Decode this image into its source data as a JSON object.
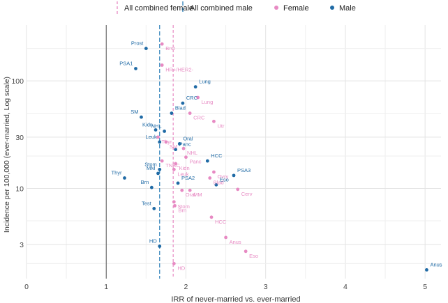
{
  "chart_data": {
    "type": "scatter",
    "xlabel": "IRR of never-married vs. ever-married",
    "ylabel": "Incidence per 100,000 (ever-married, Log scale)",
    "x_range": [
      0,
      5.2
    ],
    "y_range": [
      1.45,
      330
    ],
    "y_scale": "log",
    "x_ticks": [
      0,
      1,
      2,
      3,
      4,
      5
    ],
    "y_ticks": [
      3,
      10,
      30,
      100
    ],
    "grid": true,
    "legend_position": "top",
    "reference_lines": [
      {
        "name": "All combined female",
        "x": 1.84,
        "color": "#e78ac3",
        "dash": "4,3"
      },
      {
        "name": "All combined male",
        "x": 1.67,
        "color": "#2c7fb8",
        "dash": "6,3"
      }
    ],
    "legend": [
      {
        "label": "All combined female",
        "kind": "line",
        "color": "#e78ac3",
        "dash": "4,3"
      },
      {
        "label": "All combined male",
        "kind": "line",
        "color": "#2c7fb8",
        "dash": "6,3"
      },
      {
        "label": "Female",
        "kind": "point",
        "color": "#e78ac3"
      },
      {
        "label": "Male",
        "kind": "point",
        "color": "#1f6aa5"
      }
    ],
    "series": [
      {
        "name": "Female",
        "color": "#e78ac3",
        "points": [
          {
            "label": "Brst",
            "x": 1.7,
            "y": 220
          },
          {
            "label": "HR+/HER2-",
            "x": 1.7,
            "y": 140
          },
          {
            "label": "Lung",
            "x": 2.15,
            "y": 70
          },
          {
            "label": "CRC",
            "x": 2.05,
            "y": 50
          },
          {
            "label": "Utr",
            "x": 2.35,
            "y": 42
          },
          {
            "label": "Thyr",
            "x": 1.65,
            "y": 30
          },
          {
            "label": "SM",
            "x": 1.75,
            "y": 27
          },
          {
            "label": "NHL",
            "x": 1.97,
            "y": 23.5
          },
          {
            "label": "Panc",
            "x": 2.0,
            "y": 19.5
          },
          {
            "label": "TNBC",
            "x": 1.7,
            "y": 18
          },
          {
            "label": "Kidn",
            "x": 1.87,
            "y": 17
          },
          {
            "label": "Leuk",
            "x": 1.85,
            "y": 15
          },
          {
            "label": "Ovry",
            "x": 2.35,
            "y": 14.2
          },
          {
            "label": "Blad",
            "x": 2.3,
            "y": 12.5
          },
          {
            "label": "Oral",
            "x": 1.95,
            "y": 9.6
          },
          {
            "label": "MM",
            "x": 2.05,
            "y": 9.6
          },
          {
            "label": "Cerv",
            "x": 2.65,
            "y": 9.8
          },
          {
            "label": "Stom",
            "x": 1.85,
            "y": 7.5
          },
          {
            "label": "Brn",
            "x": 1.86,
            "y": 6.9
          },
          {
            "label": "HCC",
            "x": 2.32,
            "y": 5.4
          },
          {
            "label": "Anus",
            "x": 2.5,
            "y": 3.5
          },
          {
            "label": "Eso",
            "x": 2.75,
            "y": 2.6
          },
          {
            "label": "HD",
            "x": 1.85,
            "y": 2.0
          }
        ]
      },
      {
        "name": "Male",
        "color": "#1f6aa5",
        "points": [
          {
            "label": "Prost",
            "x": 1.5,
            "y": 200
          },
          {
            "label": "PSA1",
            "x": 1.37,
            "y": 130
          },
          {
            "label": "Lung",
            "x": 2.12,
            "y": 88
          },
          {
            "label": "CRC",
            "x": 1.96,
            "y": 62
          },
          {
            "label": "Blad",
            "x": 1.82,
            "y": 50
          },
          {
            "label": "SM",
            "x": 1.44,
            "y": 46
          },
          {
            "label": "Kidn",
            "x": 1.62,
            "y": 35
          },
          {
            "label": "NHL",
            "x": 1.73,
            "y": 34
          },
          {
            "label": "Leuk",
            "x": 1.67,
            "y": 27
          },
          {
            "label": "Oral",
            "x": 1.92,
            "y": 26
          },
          {
            "label": "Panc",
            "x": 1.87,
            "y": 23
          },
          {
            "label": "HCC",
            "x": 2.27,
            "y": 18
          },
          {
            "label": "Stom",
            "x": 1.67,
            "y": 15
          },
          {
            "label": "MM",
            "x": 1.65,
            "y": 13.8
          },
          {
            "label": "PSA3",
            "x": 2.6,
            "y": 13.2
          },
          {
            "label": "Thyr",
            "x": 1.23,
            "y": 12.5
          },
          {
            "label": "PSA2",
            "x": 1.9,
            "y": 11.2
          },
          {
            "label": "Eso",
            "x": 2.38,
            "y": 10.8
          },
          {
            "label": "Brn",
            "x": 1.57,
            "y": 10.2
          },
          {
            "label": "Test",
            "x": 1.6,
            "y": 6.5
          },
          {
            "label": "HD",
            "x": 1.67,
            "y": 2.9
          },
          {
            "label": "Anus",
            "x": 5.02,
            "y": 1.75
          }
        ]
      }
    ]
  }
}
